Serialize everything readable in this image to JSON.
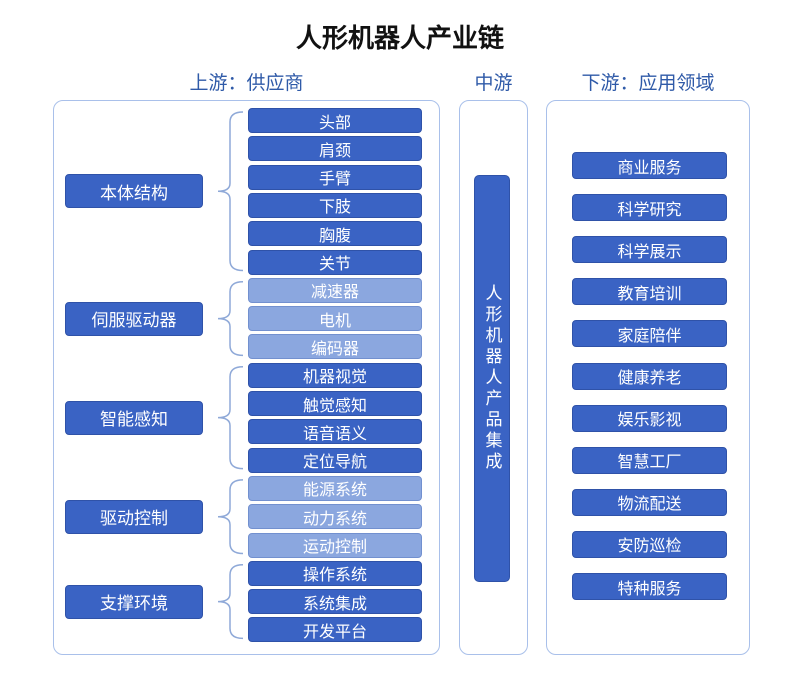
{
  "title": "人形机器人产业链",
  "headers": {
    "upstream": "上游：供应商",
    "midstream": "中游",
    "downstream": "下游：应用领域"
  },
  "colors": {
    "dark": "#3a63c4",
    "light": "#8ba7df",
    "border": "#a9c0ea",
    "header": "#2f5aa8"
  },
  "upstream": [
    {
      "label": "本体结构",
      "style": "dark",
      "items": [
        "头部",
        "肩颈",
        "手臂",
        "下肢",
        "胸腹",
        "关节"
      ]
    },
    {
      "label": "伺服驱动器",
      "style": "light",
      "items": [
        "减速器",
        "电机",
        "编码器"
      ]
    },
    {
      "label": "智能感知",
      "style": "dark",
      "items": [
        "机器视觉",
        "触觉感知",
        "语音语义",
        "定位导航"
      ]
    },
    {
      "label": "驱动控制",
      "style": "light",
      "items": [
        "能源系统",
        "动力系统",
        "运动控制"
      ]
    },
    {
      "label": "支撑环境",
      "style": "dark",
      "items": [
        "操作系统",
        "系统集成",
        "开发平台"
      ]
    }
  ],
  "midstream": "人形机器人产品集成",
  "downstream": [
    "商业服务",
    "科学研究",
    "科学展示",
    "教育培训",
    "家庭陪伴",
    "健康养老",
    "娱乐影视",
    "智慧工厂",
    "物流配送",
    "安防巡检",
    "特种服务"
  ]
}
